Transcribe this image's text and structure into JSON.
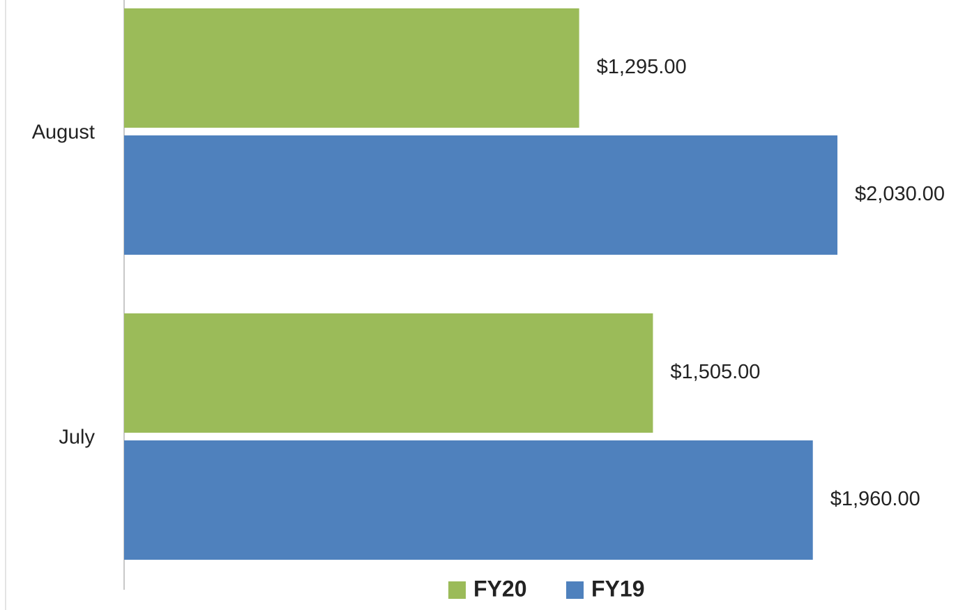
{
  "chart_data": {
    "type": "bar",
    "orientation": "horizontal",
    "categories": [
      "July",
      "August"
    ],
    "series": [
      {
        "name": "FY20",
        "color": "#9bbb59",
        "values": [
          1505,
          1295
        ],
        "value_labels": [
          "$1,505.00",
          "$1,295.00"
        ]
      },
      {
        "name": "FY19",
        "color": "#4f81bd",
        "values": [
          1960,
          2030
        ],
        "value_labels": [
          "$1,960.00",
          "$2,030.00"
        ]
      }
    ],
    "legend": "bottom"
  }
}
